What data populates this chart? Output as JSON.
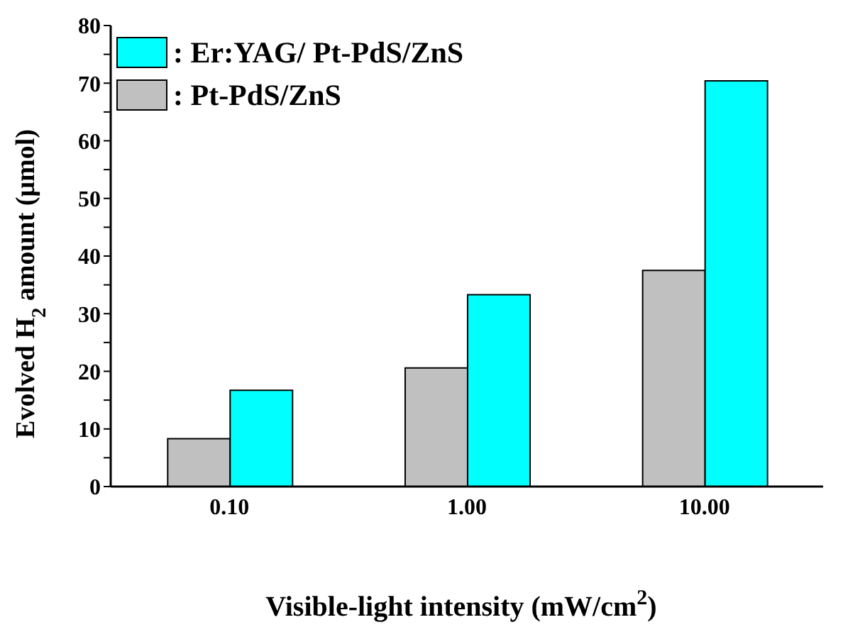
{
  "chart_data": {
    "type": "bar",
    "xlabel": "Visible-light intensity (mW/cm$^{2}$)",
    "ylabel": "Evolved H$_{2}$ amount (μmol)",
    "categories": [
      "0.10",
      "1.00",
      "10.00"
    ],
    "series": [
      {
        "name": ": Pt-PdS/ZnS",
        "color": "#c0c0c0",
        "values": [
          8.3,
          20.6,
          37.5
        ]
      },
      {
        "name": ": Er:YAG/ Pt-PdS/ZnS",
        "color": "#00ffff",
        "values": [
          16.7,
          33.3,
          70.4
        ]
      }
    ],
    "ylim": [
      0,
      80
    ],
    "yticks": [
      0,
      {
        "value": 5,
        "label": null
      },
      10,
      {
        "value": 15,
        "label": null
      },
      20,
      {
        "value": 25,
        "label": null
      },
      30,
      {
        "value": 35,
        "label": null
      },
      40,
      {
        "value": 45,
        "label": null
      },
      50,
      {
        "value": 55,
        "label": null
      },
      60,
      {
        "value": 65,
        "label": null
      },
      70,
      {
        "value": 75,
        "label": null
      },
      80
    ],
    "legend": "top left",
    "grid": false
  }
}
